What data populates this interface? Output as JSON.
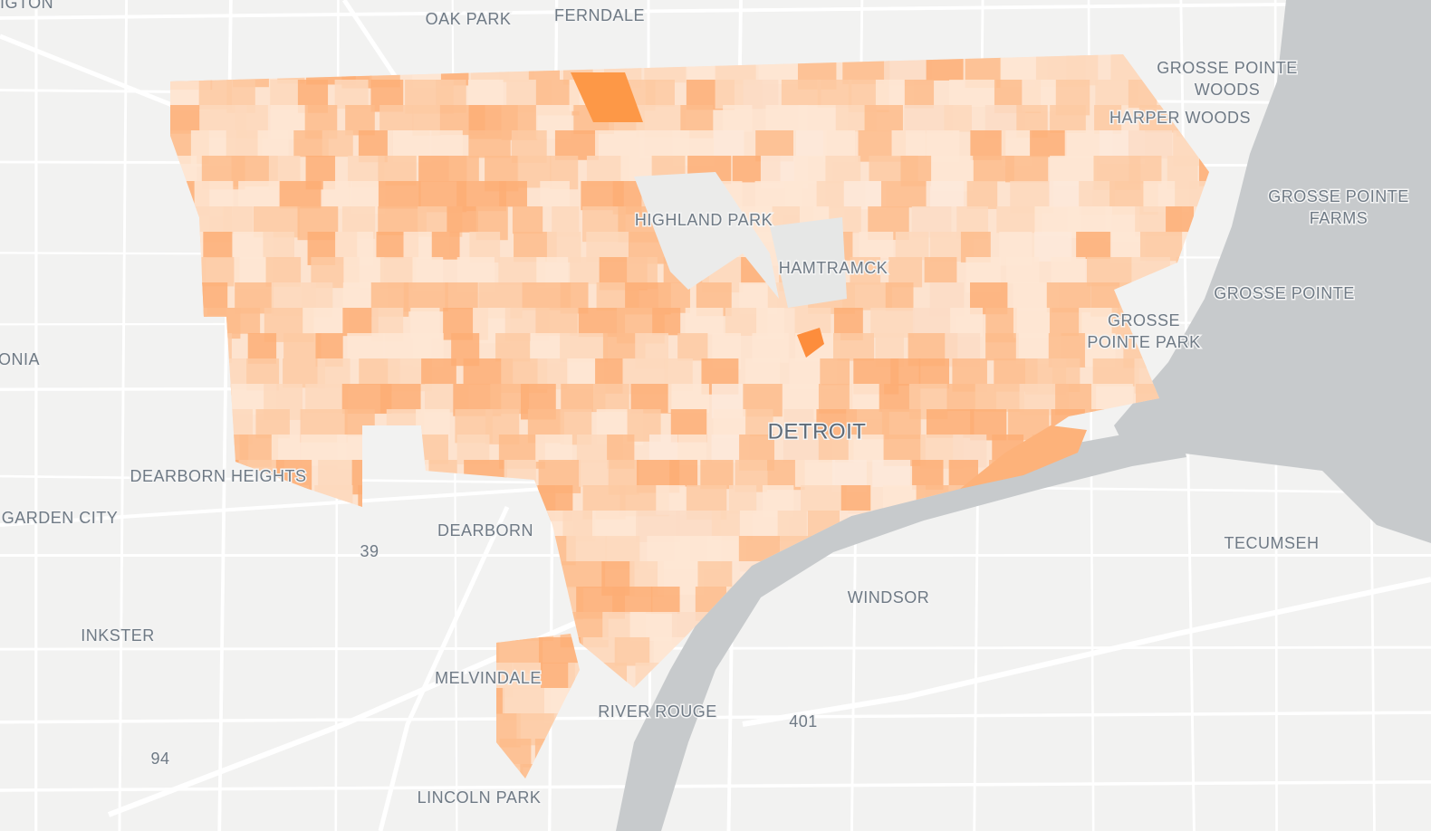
{
  "map": {
    "labels": [
      {
        "lines": [
          "IGTON"
        ]
      },
      {
        "lines": [
          "OAK PARK"
        ]
      },
      {
        "lines": [
          "FERNDALE"
        ]
      },
      {
        "lines": [
          "GROSSE POINTE",
          "WOODS"
        ]
      },
      {
        "lines": [
          "HARPER WOODS"
        ]
      },
      {
        "lines": [
          "GROSSE POINTE",
          "FARMS"
        ]
      },
      {
        "lines": [
          "HIGHLAND PARK"
        ]
      },
      {
        "lines": [
          "HAMTRAMCK"
        ]
      },
      {
        "lines": [
          "GROSSE POINTE"
        ]
      },
      {
        "lines": [
          "GROSSE",
          "POINTE PARK"
        ]
      },
      {
        "lines": [
          "ONIA"
        ]
      },
      {
        "lines": [
          "DETROIT"
        ]
      },
      {
        "lines": [
          "DEARBORN HEIGHTS"
        ]
      },
      {
        "lines": [
          "GARDEN CITY"
        ]
      },
      {
        "lines": [
          "DEARBORN"
        ]
      },
      {
        "lines": [
          "39"
        ]
      },
      {
        "lines": [
          "TECUMSEH"
        ]
      },
      {
        "lines": [
          "WINDSOR"
        ]
      },
      {
        "lines": [
          "INKSTER"
        ]
      },
      {
        "lines": [
          "MELVINDALE"
        ]
      },
      {
        "lines": [
          "RIVER ROUGE"
        ]
      },
      {
        "lines": [
          "401"
        ]
      },
      {
        "lines": [
          "94"
        ]
      },
      {
        "lines": [
          "LINCOLN PARK"
        ]
      }
    ]
  }
}
